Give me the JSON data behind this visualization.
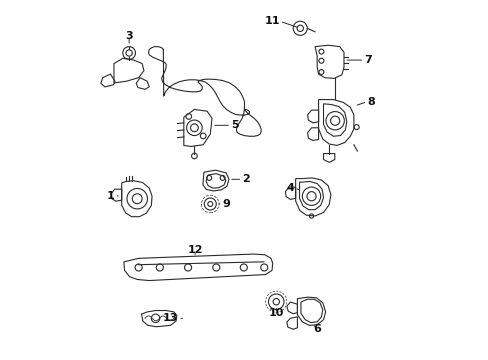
{
  "bg_color": "#ffffff",
  "line_color": "#2a2a2a",
  "label_color": "#111111",
  "fig_width": 4.89,
  "fig_height": 3.6,
  "dpi": 100
}
